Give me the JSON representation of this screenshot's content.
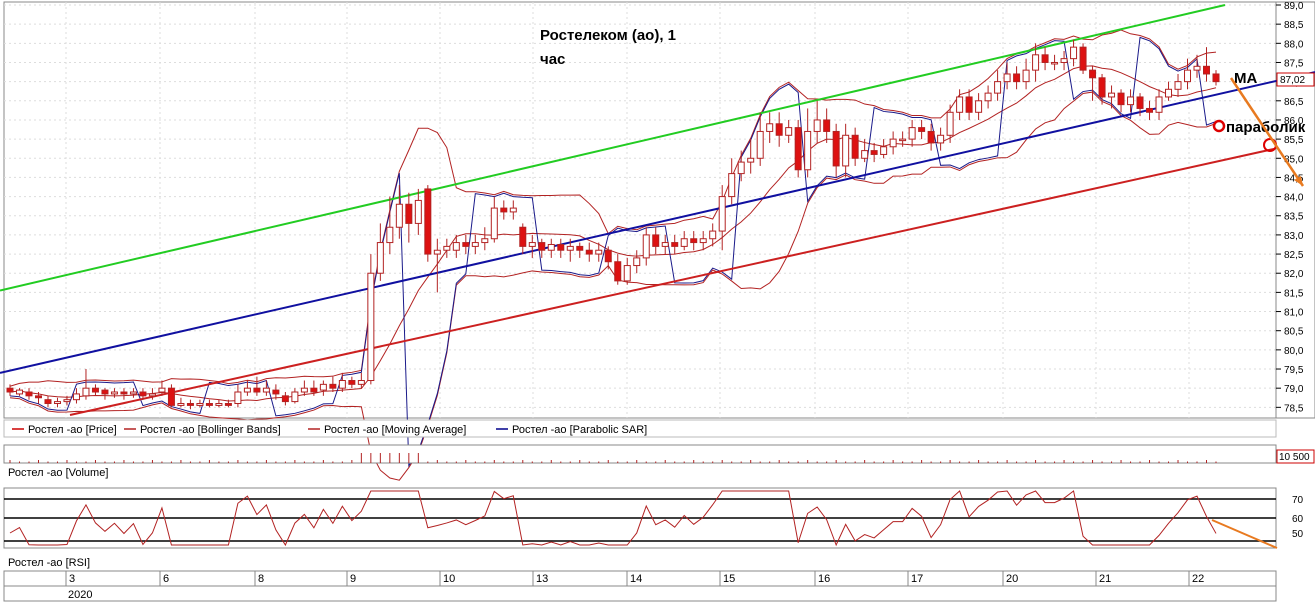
{
  "chart_data": {
    "type": "candlestick",
    "title": "Ростелеком (ао),  1",
    "title_line2": "час",
    "price_axis": {
      "ylim": [
        78.3,
        89.0
      ],
      "ticks": [
        "89,0",
        "88,5",
        "88,0",
        "87,5",
        "87,0",
        "86,5",
        "86,0",
        "85,5",
        "85,0",
        "84,5",
        "84,0",
        "83,5",
        "83,0",
        "82,5",
        "82,0",
        "81,5",
        "81,0",
        "80,5",
        "80,0",
        "79,5",
        "79,0",
        "78,5"
      ],
      "current_price": "87,02"
    },
    "legend": [
      {
        "label": "Ростел -ао [Price]",
        "color": "#cc0000"
      },
      {
        "label": "Ростел -ао [Bollinger Bands]",
        "color": "#b22222"
      },
      {
        "label": "Ростел -ао [Moving Average]",
        "color": "#b22222"
      },
      {
        "label": "Ростел -ао [Parabolic SAR]",
        "color": "#00008b"
      }
    ],
    "trendlines": [
      {
        "name": "upper",
        "color": "#22cc22",
        "from": [
          0,
          81.55
        ],
        "to": [
          1225,
          89.0
        ]
      },
      {
        "name": "middle",
        "color": "#1010a0",
        "from": [
          0,
          79.4
        ],
        "to": [
          1315,
          87.25
        ]
      },
      {
        "name": "lower",
        "color": "#cc2020",
        "from": [
          70,
          78.3
        ],
        "to": [
          1275,
          85.25
        ]
      }
    ],
    "candles": [
      [
        79.0,
        78.9,
        79.1,
        78.8
      ],
      [
        78.85,
        78.95,
        79.0,
        78.8
      ],
      [
        78.9,
        78.8,
        79.0,
        78.7
      ],
      [
        78.8,
        78.75,
        78.9,
        78.6
      ],
      [
        78.7,
        78.6,
        78.8,
        78.5
      ],
      [
        78.6,
        78.65,
        78.75,
        78.5
      ],
      [
        78.65,
        78.7,
        78.8,
        78.55
      ],
      [
        78.7,
        78.85,
        79.0,
        78.6
      ],
      [
        78.8,
        79.0,
        79.5,
        78.7
      ],
      [
        79.0,
        78.9,
        79.1,
        78.8
      ],
      [
        78.95,
        78.85,
        79.0,
        78.7
      ],
      [
        78.85,
        78.9,
        79.0,
        78.75
      ],
      [
        78.9,
        78.85,
        79.0,
        78.7
      ],
      [
        78.85,
        78.9,
        79.0,
        78.75
      ],
      [
        78.9,
        78.8,
        79.0,
        78.7
      ],
      [
        78.8,
        78.85,
        79.0,
        78.7
      ],
      [
        78.9,
        79.0,
        79.2,
        78.8
      ],
      [
        79.0,
        78.55,
        79.1,
        78.5
      ],
      [
        78.55,
        78.6,
        78.75,
        78.5
      ],
      [
        78.6,
        78.55,
        78.7,
        78.45
      ],
      [
        78.55,
        78.6,
        78.7,
        78.5
      ],
      [
        78.6,
        78.55,
        78.7,
        78.5
      ],
      [
        78.55,
        78.6,
        78.7,
        78.5
      ],
      [
        78.6,
        78.55,
        78.7,
        78.5
      ],
      [
        78.6,
        78.9,
        79.1,
        78.5
      ],
      [
        78.9,
        79.0,
        79.2,
        78.8
      ],
      [
        79.0,
        78.9,
        79.3,
        78.8
      ],
      [
        78.9,
        79.0,
        79.2,
        78.8
      ],
      [
        78.95,
        78.85,
        79.1,
        78.7
      ],
      [
        78.8,
        78.65,
        78.9,
        78.55
      ],
      [
        78.65,
        78.9,
        79.0,
        78.6
      ],
      [
        78.9,
        79.0,
        79.2,
        78.8
      ],
      [
        79.0,
        78.9,
        79.2,
        78.8
      ],
      [
        78.95,
        79.1,
        79.2,
        78.8
      ],
      [
        79.1,
        79.0,
        79.3,
        78.9
      ],
      [
        79.0,
        79.2,
        79.4,
        78.9
      ],
      [
        79.2,
        79.1,
        79.3,
        79.0
      ],
      [
        79.1,
        79.2,
        79.4,
        79.0
      ],
      [
        79.2,
        82.0,
        82.5,
        79.1
      ],
      [
        82.0,
        82.8,
        83.3,
        81.8
      ],
      [
        82.8,
        83.2,
        84.0,
        82.5
      ],
      [
        83.2,
        83.8,
        84.3,
        82.9
      ],
      [
        83.8,
        83.3,
        84.1,
        82.8
      ],
      [
        83.3,
        83.9,
        84.2,
        83.0
      ],
      [
        84.2,
        82.5,
        84.3,
        82.3
      ],
      [
        82.5,
        82.6,
        82.9,
        81.5
      ],
      [
        82.6,
        82.7,
        82.9,
        82.4
      ],
      [
        82.6,
        82.8,
        83.0,
        82.4
      ],
      [
        82.8,
        82.7,
        83.0,
        82.5
      ],
      [
        82.7,
        82.8,
        83.0,
        82.5
      ],
      [
        82.8,
        82.9,
        83.2,
        82.6
      ],
      [
        82.9,
        83.7,
        84.0,
        82.8
      ],
      [
        83.7,
        83.6,
        83.9,
        83.4
      ],
      [
        83.6,
        83.7,
        83.9,
        83.4
      ],
      [
        83.2,
        82.7,
        83.3,
        82.5
      ],
      [
        82.7,
        82.8,
        83.0,
        82.4
      ],
      [
        82.8,
        82.6,
        82.9,
        82.4
      ],
      [
        82.6,
        82.75,
        82.9,
        82.4
      ],
      [
        82.75,
        82.6,
        82.9,
        82.4
      ],
      [
        82.6,
        82.7,
        82.9,
        82.3
      ],
      [
        82.7,
        82.6,
        82.8,
        82.4
      ],
      [
        82.6,
        82.5,
        82.8,
        82.3
      ],
      [
        82.5,
        82.6,
        82.8,
        82.3
      ],
      [
        82.6,
        82.3,
        82.7,
        82.1
      ],
      [
        82.3,
        81.8,
        82.5,
        81.7
      ],
      [
        81.8,
        82.2,
        82.4,
        81.7
      ],
      [
        82.2,
        82.4,
        82.6,
        82.0
      ],
      [
        82.4,
        83.0,
        83.2,
        82.2
      ],
      [
        83.0,
        82.7,
        83.2,
        82.5
      ],
      [
        82.7,
        82.8,
        83.0,
        82.5
      ],
      [
        82.8,
        82.7,
        83.0,
        82.5
      ],
      [
        82.7,
        82.9,
        83.1,
        82.6
      ],
      [
        82.9,
        82.8,
        83.1,
        82.6
      ],
      [
        82.8,
        82.9,
        83.1,
        82.6
      ],
      [
        82.9,
        83.1,
        83.3,
        82.7
      ],
      [
        83.1,
        84.0,
        84.3,
        82.6
      ],
      [
        84.0,
        84.6,
        85.0,
        83.8
      ],
      [
        84.6,
        84.9,
        85.2,
        84.4
      ],
      [
        84.9,
        85.0,
        85.5,
        84.6
      ],
      [
        85.0,
        85.7,
        86.2,
        84.8
      ],
      [
        85.7,
        85.9,
        86.2,
        85.4
      ],
      [
        85.9,
        85.6,
        86.2,
        85.3
      ],
      [
        85.6,
        85.8,
        86.0,
        85.4
      ],
      [
        85.8,
        84.7,
        86.0,
        84.5
      ],
      [
        84.7,
        85.7,
        86.3,
        84.5
      ],
      [
        85.7,
        86.0,
        86.5,
        85.4
      ],
      [
        86.0,
        85.7,
        86.3,
        85.4
      ],
      [
        85.7,
        84.8,
        85.9,
        84.5
      ],
      [
        84.8,
        85.6,
        85.9,
        84.5
      ],
      [
        85.6,
        85.0,
        85.8,
        84.8
      ],
      [
        85.0,
        85.2,
        85.5,
        84.9
      ],
      [
        85.2,
        85.1,
        85.4,
        84.9
      ],
      [
        85.1,
        85.3,
        85.5,
        85.0
      ],
      [
        85.3,
        85.5,
        85.7,
        85.1
      ],
      [
        85.5,
        85.5,
        85.7,
        85.3
      ],
      [
        85.5,
        85.8,
        86.0,
        85.3
      ],
      [
        85.8,
        85.7,
        86.0,
        85.5
      ],
      [
        85.7,
        85.4,
        85.9,
        85.2
      ],
      [
        85.4,
        85.6,
        85.8,
        85.2
      ],
      [
        85.6,
        86.2,
        86.4,
        85.4
      ],
      [
        86.2,
        86.6,
        86.8,
        86.0
      ],
      [
        86.6,
        86.2,
        86.8,
        86.0
      ],
      [
        86.2,
        86.5,
        86.7,
        86.0
      ],
      [
        86.5,
        86.7,
        86.9,
        86.3
      ],
      [
        86.7,
        87.0,
        87.3,
        86.5
      ],
      [
        87.0,
        87.2,
        87.5,
        86.8
      ],
      [
        87.2,
        87.0,
        87.4,
        86.8
      ],
      [
        87.0,
        87.3,
        87.6,
        86.8
      ],
      [
        87.3,
        87.7,
        88.0,
        87.0
      ],
      [
        87.7,
        87.5,
        87.9,
        87.3
      ],
      [
        87.5,
        87.5,
        87.7,
        87.3
      ],
      [
        87.5,
        87.6,
        87.8,
        87.3
      ],
      [
        87.6,
        87.9,
        88.1,
        87.4
      ],
      [
        87.9,
        87.3,
        88.0,
        87.2
      ],
      [
        87.3,
        87.1,
        87.4,
        86.5
      ],
      [
        87.1,
        86.6,
        87.2,
        86.4
      ],
      [
        86.6,
        86.7,
        86.9,
        86.3
      ],
      [
        86.7,
        86.4,
        86.8,
        86.2
      ],
      [
        86.4,
        86.6,
        86.8,
        86.2
      ],
      [
        86.6,
        86.3,
        86.7,
        86.1
      ],
      [
        86.3,
        86.2,
        86.5,
        86.0
      ],
      [
        86.2,
        86.6,
        86.8,
        86.0
      ],
      [
        86.6,
        86.8,
        87.0,
        86.5
      ],
      [
        86.8,
        87.0,
        87.2,
        86.6
      ],
      [
        87.0,
        87.3,
        87.6,
        86.8
      ],
      [
        87.3,
        87.4,
        87.7,
        87.1
      ],
      [
        87.4,
        87.2,
        87.9,
        87.0
      ],
      [
        87.2,
        87.0,
        87.3,
        86.9
      ]
    ],
    "x_dates": [
      "3",
      "6",
      "8",
      "9",
      "10",
      "13",
      "14",
      "15",
      "16",
      "17",
      "20",
      "21",
      "22"
    ],
    "year": "2020",
    "volume": {
      "label": "Ростел -ао [Volume]",
      "value": "10 500"
    },
    "rsi": {
      "label": "Ростел -ао [RSI]",
      "ticks": [
        "70",
        "60",
        "50"
      ]
    },
    "annotations": {
      "ma": "МА",
      "parabolic": "параболик"
    }
  }
}
